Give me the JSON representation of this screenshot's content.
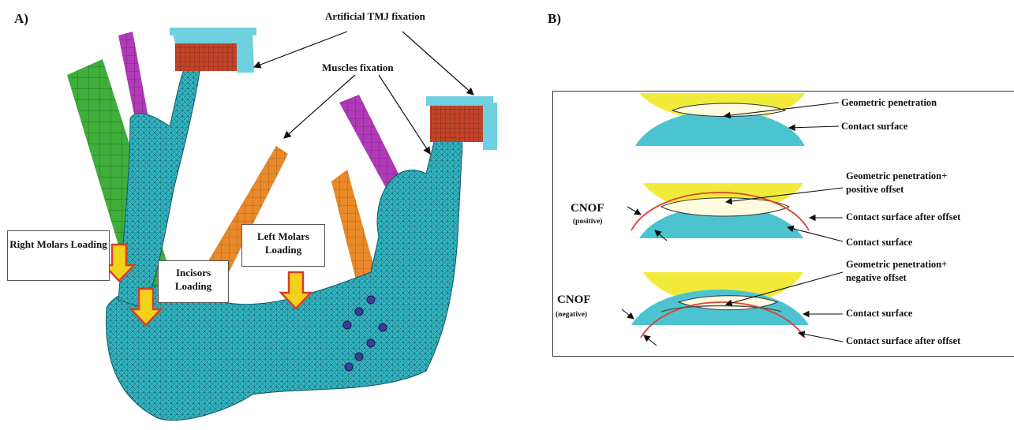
{
  "panel_a": {
    "letter": "A)",
    "labels": {
      "tmj": "Artificial TMJ fixation",
      "muscles": "Muscles fixation",
      "right_molars": "Right Molars Loading",
      "incisors": "Incisors Loading",
      "left_molars": "Left Molars Loading"
    }
  },
  "panel_b": {
    "letter": "B)",
    "top": {
      "geometric": "Geometric penetration",
      "contact": "Contact surface"
    },
    "middle": {
      "geo_line1": "Geometric penetration+",
      "geo_line2": "positive offset",
      "cnof": "CNOF",
      "cnof_sub": "(positive)",
      "after_offset": "Contact surface after offset",
      "contact": "Contact surface"
    },
    "bottom": {
      "geo_line1": "Geometric penetration+",
      "geo_line2": "negative offset",
      "cnof": "CNOF",
      "cnof_sub": "(negative)",
      "contact": "Contact surface",
      "after_offset": "Contact surface after offset"
    }
  },
  "colors": {
    "mesh": "#35b8c4",
    "tmj_block": "#c0442a",
    "tmj_cap": "#6fd0e0",
    "muscle_green": "#3fae3a",
    "muscle_purple": "#b03ab8",
    "muscle_orange": "#e8892a",
    "load_arrow": "#f2d11a",
    "load_arrow_border": "#d2402a",
    "lens_yellow": "#f2ea3a",
    "lens_cyan": "#4cc4d0",
    "offset_red": "#e04030"
  }
}
